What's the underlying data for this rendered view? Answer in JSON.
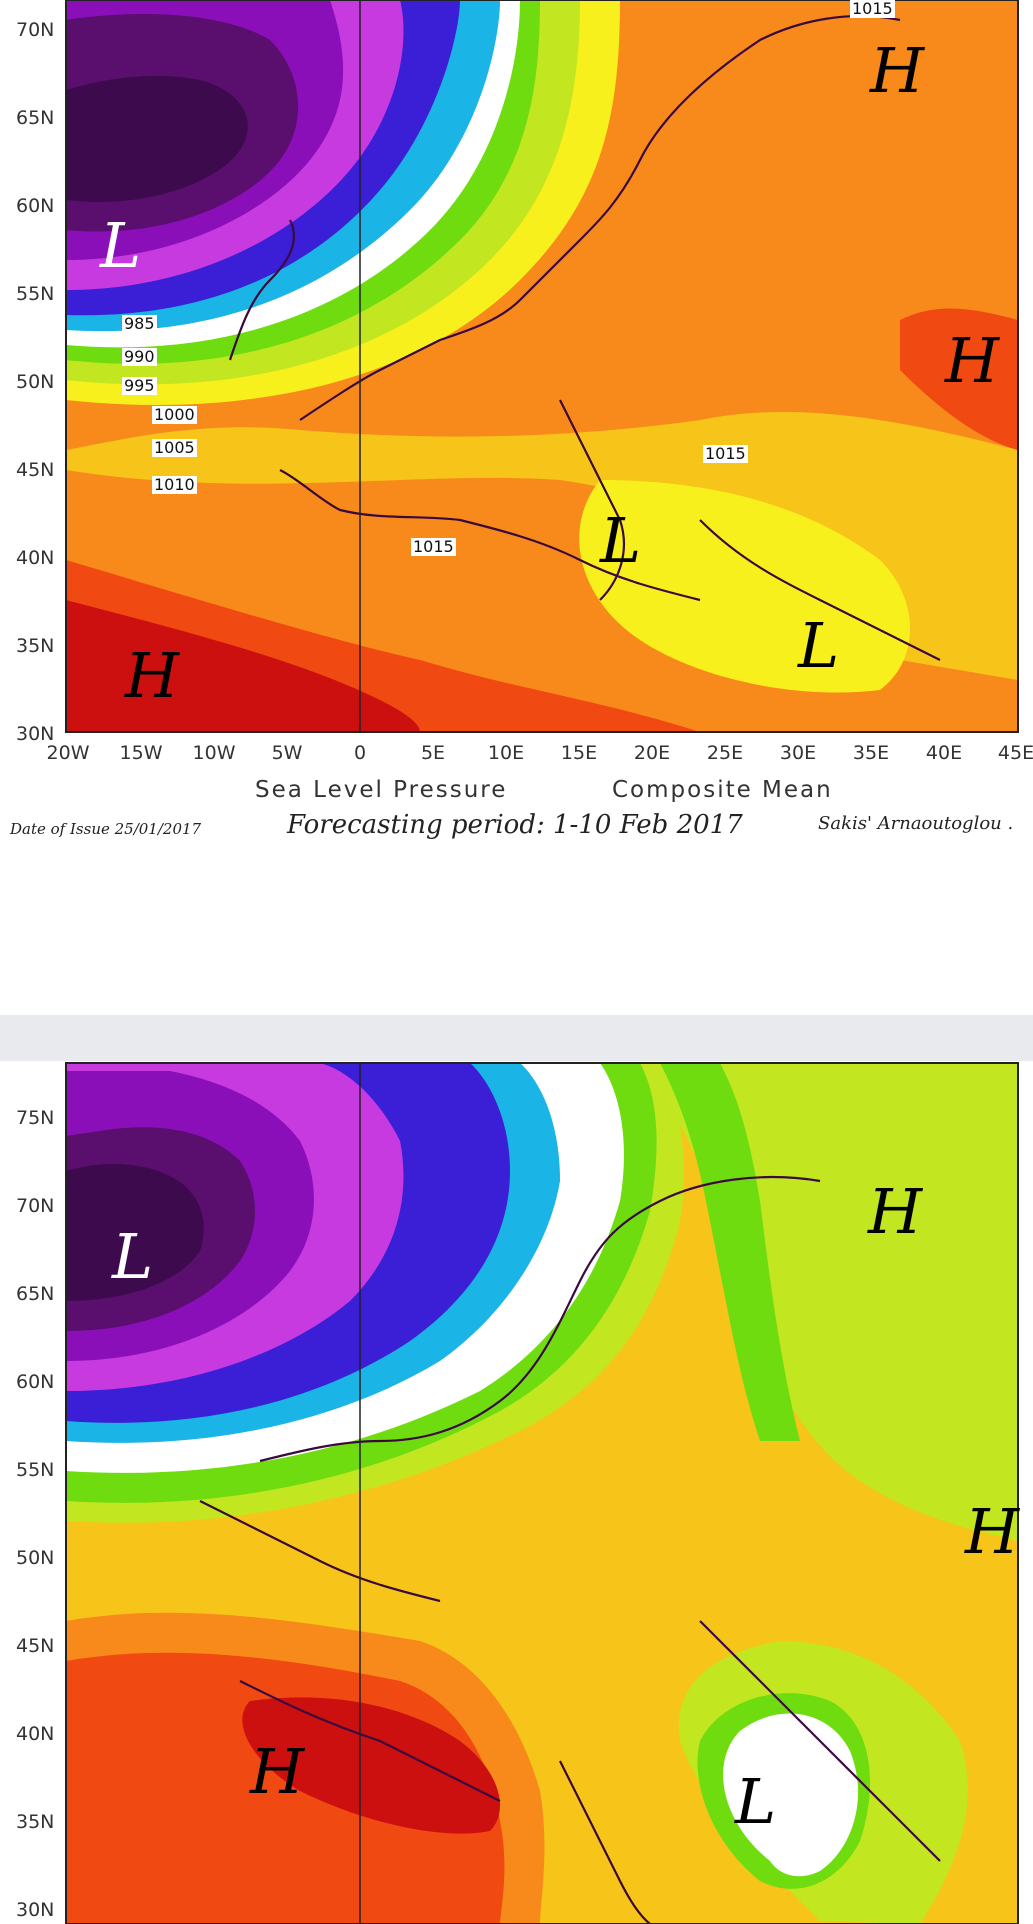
{
  "panels": [
    {
      "lat_labels": [
        "70N",
        "65N",
        "60N",
        "55N",
        "50N",
        "45N",
        "40N",
        "35N",
        "30N"
      ],
      "lon_labels": [
        "20W",
        "15W",
        "10W",
        "5W",
        "0",
        "5E",
        "10E",
        "15E",
        "20E",
        "25E",
        "30E",
        "35E",
        "40E",
        "45E"
      ],
      "contour_labels": [
        "1015",
        "985",
        "990",
        "995",
        "1000",
        "1005",
        "1010",
        "1015",
        "1015"
      ],
      "systems": [
        "H",
        "L",
        "H",
        "L",
        "L",
        "H"
      ],
      "caption_title": "Sea Level Pressure",
      "caption_subtitle": "Composite Mean",
      "forecast_period": "Forecasting period: 1-10 Feb 2017",
      "issue_date": "Date of Issue 25/01/2017",
      "author": "Sakis' Arnaoutoglou ."
    },
    {
      "lat_labels": [
        "75N",
        "70N",
        "65N",
        "60N",
        "55N",
        "50N",
        "45N",
        "40N",
        "35N",
        "30N"
      ],
      "systems": [
        "H",
        "L",
        "H",
        "H",
        "L"
      ]
    }
  ],
  "colors": {
    "deep_low": "#3d0a4e",
    "purple": "#8a0fb8",
    "violet": "#c63ae0",
    "blue": "#3a1fd6",
    "cyan": "#1ab4e6",
    "white": "#ffffff",
    "green": "#6fdc10",
    "yellow_green": "#c2e620",
    "yellow": "#f8f01c",
    "gold": "#f7c41a",
    "orange": "#f78a1a",
    "red_orange": "#f04a12",
    "red": "#cc1010",
    "coast": "#3a0a3e"
  }
}
